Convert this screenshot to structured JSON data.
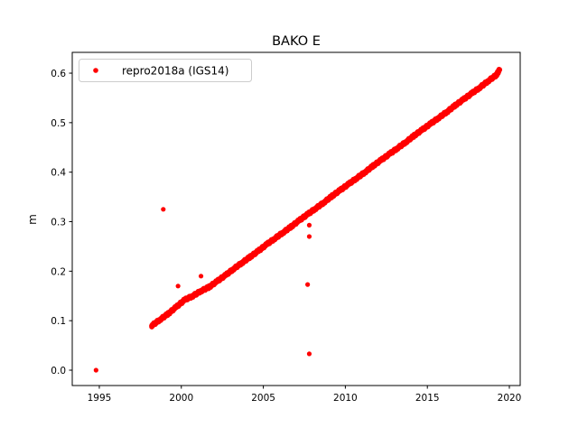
{
  "chart_data": {
    "type": "scatter",
    "title": "BAKO E",
    "xlabel": "",
    "ylabel": "m",
    "xlim": [
      1993.35,
      2020.66
    ],
    "ylim": [
      -0.031,
      0.642
    ],
    "xticks": [
      1995,
      2000,
      2005,
      2010,
      2015,
      2020
    ],
    "xtick_labels": [
      "1995",
      "2000",
      "2005",
      "2010",
      "2015",
      "2020"
    ],
    "yticks": [
      0.0,
      0.1,
      0.2,
      0.3,
      0.4,
      0.5,
      0.6
    ],
    "ytick_labels": [
      "0.0",
      "0.1",
      "0.2",
      "0.3",
      "0.4",
      "0.5",
      "0.6"
    ],
    "grid": false,
    "legend": {
      "placement": "top-left",
      "entries": [
        "repro2018a (IGS14)"
      ]
    },
    "series": [
      {
        "name": "repro2018a (IGS14)",
        "color": "#ff0000",
        "marker": "dot",
        "x": [
          1998.2,
          1998.7,
          1999.2,
          1999.7,
          2000.2,
          2000.7,
          2001.2,
          2001.7,
          2002.2,
          2002.7,
          2003.2,
          2003.7,
          2004.2,
          2004.7,
          2005.2,
          2005.7,
          2006.2,
          2006.7,
          2007.2,
          2007.7,
          2008.2,
          2008.7,
          2009.2,
          2009.7,
          2010.2,
          2010.7,
          2011.2,
          2011.7,
          2012.2,
          2012.7,
          2013.2,
          2013.7,
          2014.2,
          2014.7,
          2015.2,
          2015.7,
          2016.2,
          2016.7,
          2017.2,
          2017.7,
          2018.2,
          2018.7,
          2019.2,
          2019.4
        ],
        "y": [
          0.09,
          0.102,
          0.114,
          0.128,
          0.142,
          0.15,
          0.16,
          0.168,
          0.18,
          0.192,
          0.205,
          0.217,
          0.229,
          0.241,
          0.254,
          0.266,
          0.278,
          0.29,
          0.303,
          0.315,
          0.327,
          0.339,
          0.352,
          0.364,
          0.376,
          0.388,
          0.4,
          0.413,
          0.425,
          0.437,
          0.449,
          0.461,
          0.474,
          0.486,
          0.498,
          0.51,
          0.522,
          0.535,
          0.547,
          0.559,
          0.571,
          0.584,
          0.596,
          0.607
        ],
        "outliers_x": [
          1994.8,
          1998.9,
          1999.8,
          2001.2,
          2007.8,
          2007.8,
          2007.7,
          2007.8
        ],
        "outliers_y": [
          0.0,
          0.325,
          0.17,
          0.19,
          0.293,
          0.27,
          0.173,
          0.033
        ]
      }
    ]
  }
}
